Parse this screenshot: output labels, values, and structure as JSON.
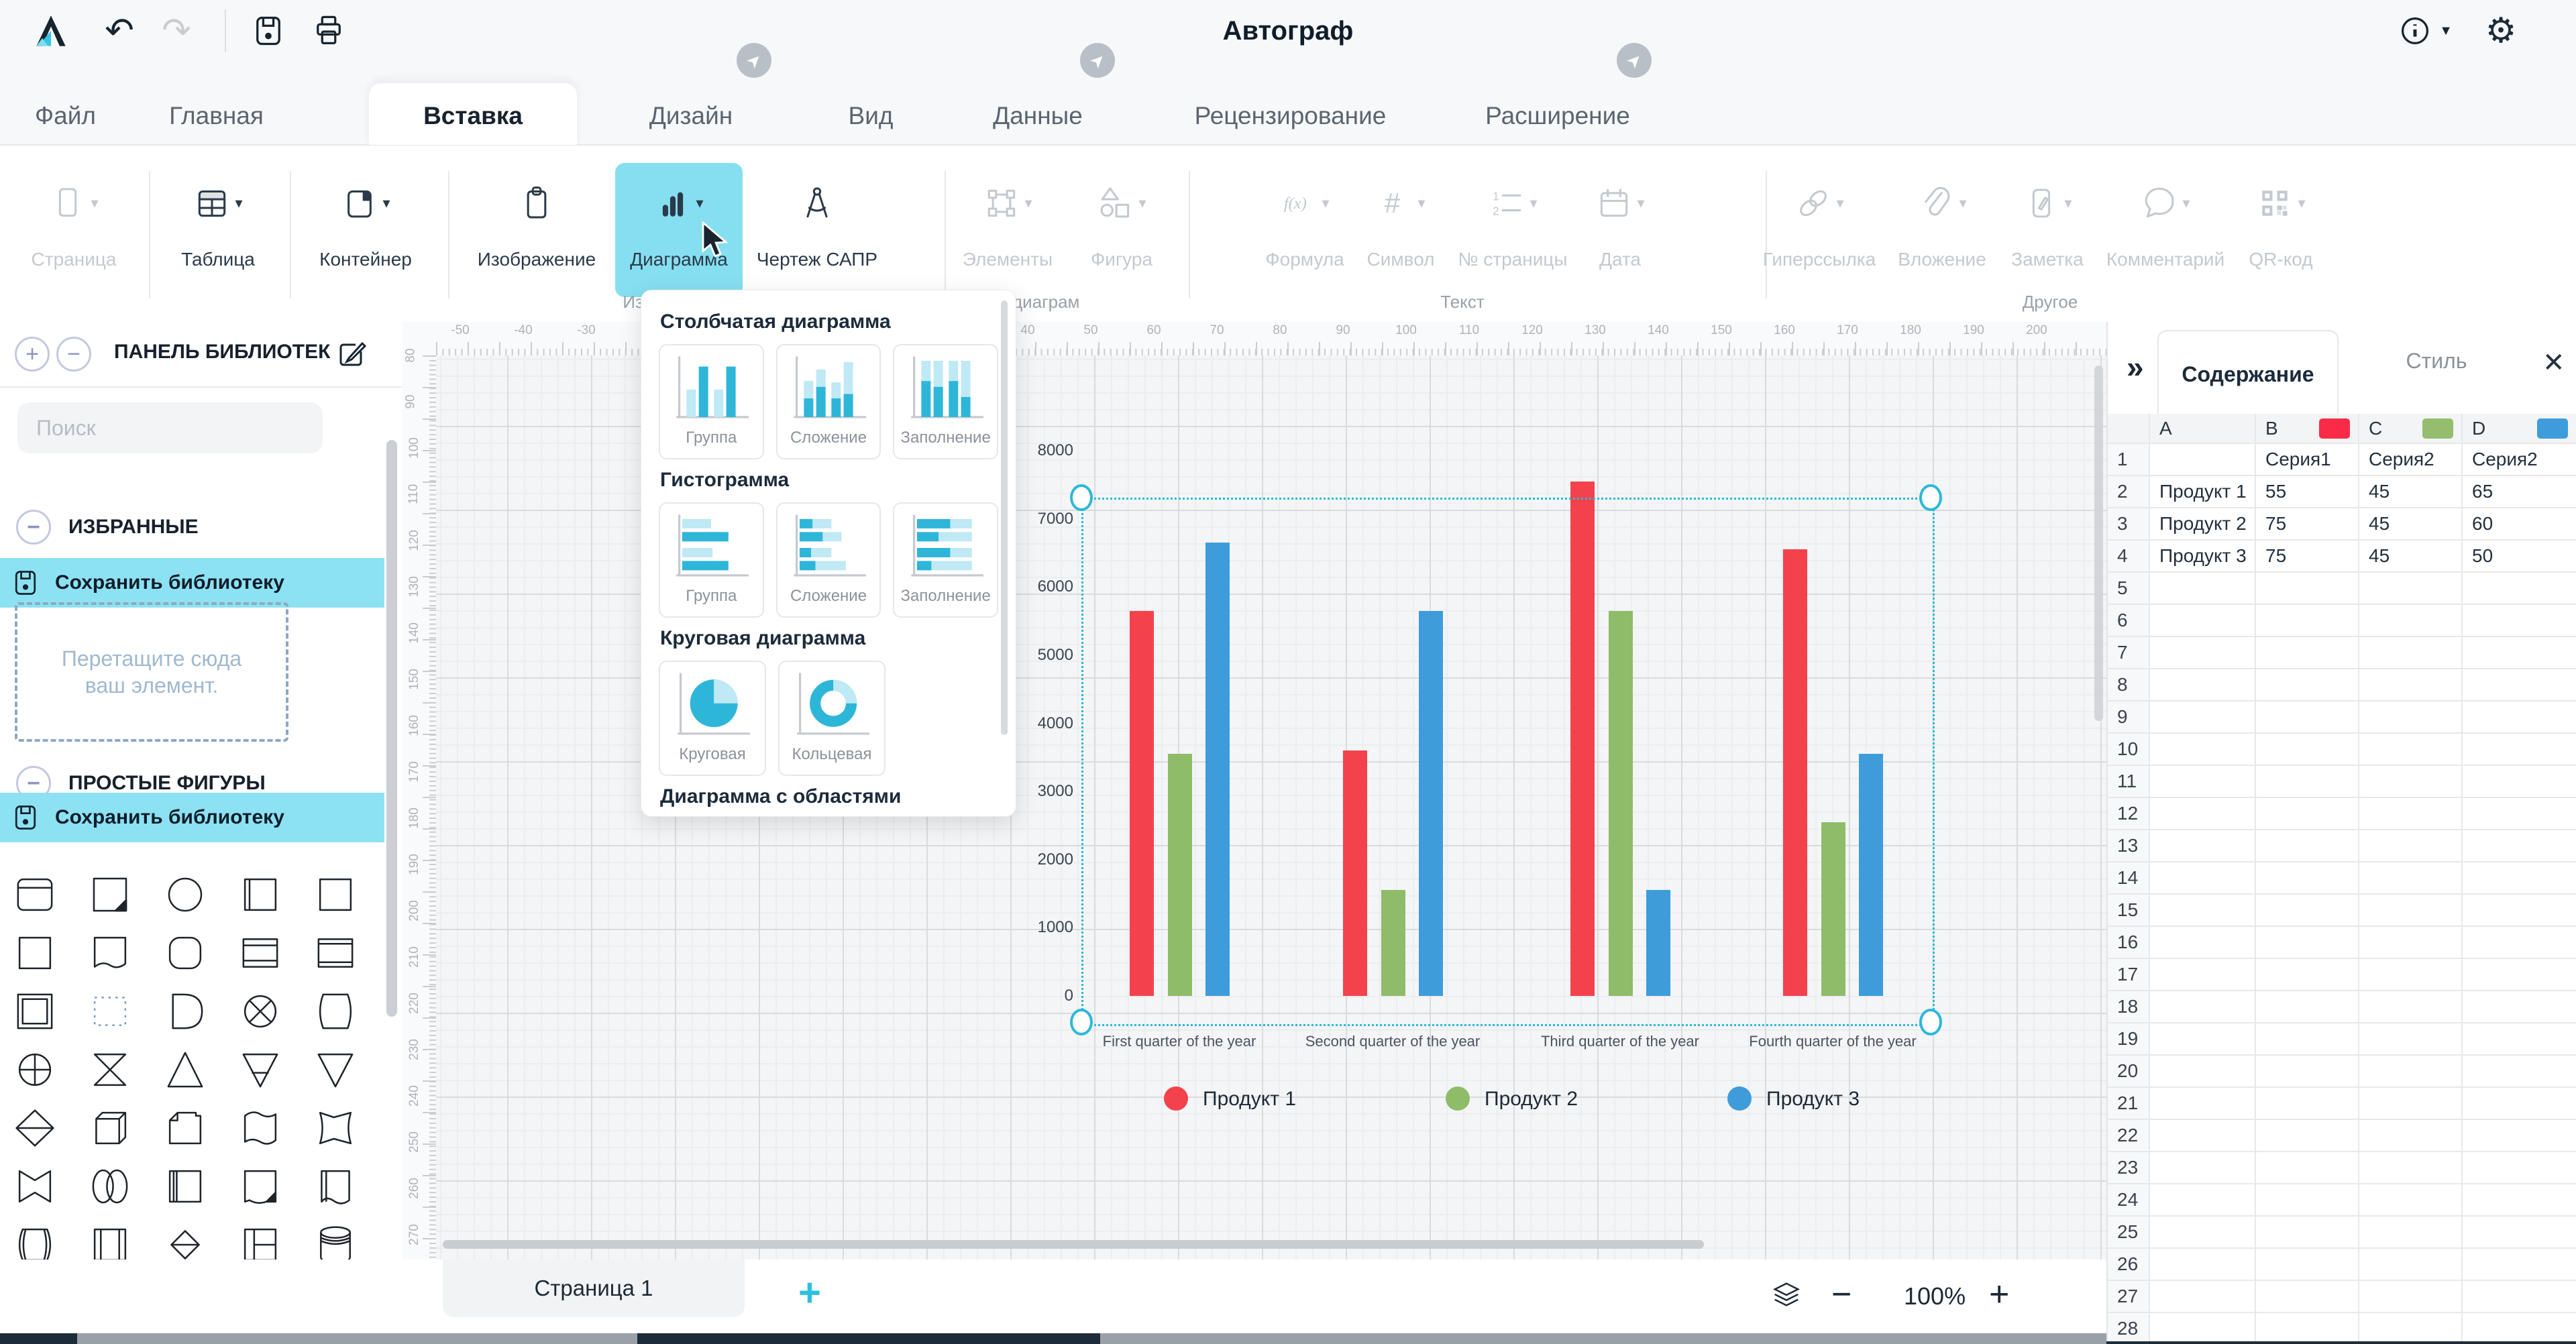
{
  "topbar": {
    "title": "Автограф"
  },
  "tabs": [
    {
      "label": "Файл"
    },
    {
      "label": "Главная"
    },
    {
      "label": "Вставка",
      "active": true
    },
    {
      "label": "Дизайн",
      "badge": true
    },
    {
      "label": "Вид"
    },
    {
      "label": "Данные",
      "badge": true
    },
    {
      "label": "Рецензирование"
    },
    {
      "label": "Расширение",
      "badge": true
    }
  ],
  "ribbon": {
    "groups": [
      {
        "caption": "",
        "items": [
          {
            "label": "Страница",
            "icon": "page",
            "caret": true,
            "disabled": true
          }
        ]
      },
      {
        "caption": "",
        "items": [
          {
            "label": "Таблица",
            "icon": "table",
            "caret": true
          }
        ]
      },
      {
        "caption": "",
        "items": [
          {
            "label": "Контейнер",
            "icon": "container",
            "caret": true
          }
        ]
      },
      {
        "caption": "Изображения",
        "items": [
          {
            "label": "Изображение",
            "icon": "clipboard"
          },
          {
            "label": "Диаграмма",
            "icon": "chart",
            "caret": true,
            "active": true
          },
          {
            "label": "Чертеж САПР",
            "icon": "compass"
          }
        ]
      },
      {
        "caption": "Части диаграм",
        "items": [
          {
            "label": "Элементы",
            "icon": "elements",
            "caret": true,
            "disabled": true
          },
          {
            "label": "Фигура",
            "icon": "shapes",
            "caret": true,
            "disabled": true
          }
        ]
      },
      {
        "caption": "Текст",
        "items": [
          {
            "label": "Формула",
            "icon": "formula",
            "caret": true,
            "disabled": true
          },
          {
            "label": "Символ",
            "icon": "hash",
            "caret": true,
            "disabled": true
          },
          {
            "label": "№ страницы",
            "icon": "numlist",
            "caret": true,
            "disabled": true
          },
          {
            "label": "Дата",
            "icon": "calendar",
            "caret": true,
            "disabled": true
          }
        ]
      },
      {
        "caption": "Другое",
        "items": [
          {
            "label": "Гиперссылка",
            "icon": "link",
            "caret": true,
            "disabled": true
          },
          {
            "label": "Вложение",
            "icon": "paperclip",
            "caret": true,
            "disabled": true
          },
          {
            "label": "Заметка",
            "icon": "note",
            "caret": true,
            "disabled": true
          },
          {
            "label": "Комментарий",
            "icon": "comment",
            "caret": true,
            "disabled": true
          },
          {
            "label": "QR-код",
            "icon": "qr",
            "caret": true,
            "disabled": true
          }
        ]
      }
    ]
  },
  "chart_menu": {
    "sections": [
      {
        "title": "Столбчатая диаграмма",
        "items": [
          {
            "label": "Группа",
            "kind": "col-group"
          },
          {
            "label": "Сложение",
            "kind": "col-stack"
          },
          {
            "label": "Заполнение",
            "kind": "col-fill"
          }
        ]
      },
      {
        "title": "Гистограмма",
        "items": [
          {
            "label": "Группа",
            "kind": "bar-group"
          },
          {
            "label": "Сложение",
            "kind": "bar-stack"
          },
          {
            "label": "Заполнение",
            "kind": "bar-fill"
          }
        ]
      },
      {
        "title": "Круговая диаграмма",
        "items": [
          {
            "label": "Круговая",
            "kind": "pie"
          },
          {
            "label": "Кольцевая",
            "kind": "donut"
          }
        ]
      },
      {
        "title": "Диаграмма с областями",
        "items": [
          {
            "label": "",
            "kind": "area"
          },
          {
            "label": "",
            "kind": "area"
          }
        ]
      }
    ]
  },
  "sidebar": {
    "panel_title": "ПАНЕЛЬ БИБЛИОТЕК",
    "search_placeholder": "Поиск",
    "favorites_title": "ИЗБРАННЫЕ",
    "save_label": "Сохранить библиотеку",
    "dropzone_text": "Перетащите сюда ваш элемент.",
    "shapes_title": "ПРОСТЫЕ ФИГУРЫ",
    "shapes": [
      "note",
      "folded",
      "circle",
      "leftbar",
      "square",
      "square",
      "wavebottom",
      "roundsq",
      "hlines",
      "hlines2",
      "doublerect",
      "dottedrect",
      "dshape",
      "circlex",
      "barrel",
      "circlecross",
      "hourglass",
      "triangle",
      "tridownline",
      "tridown",
      "diamondline",
      "box3d",
      "flagcorner",
      "waveflag",
      "arrowflag",
      "bowtie",
      "lobes",
      "leftbar2",
      "folddark",
      "sidewave",
      "roundsides",
      "vlines",
      "smalldiamond",
      "trect",
      "cylinder",
      "slant",
      "slant",
      "slant",
      "slant",
      "peak"
    ]
  },
  "canvas": {
    "h_ruler": {
      "start": -50,
      "end": 200,
      "step": 10
    },
    "v_ruler": {
      "start": 80,
      "end": 270,
      "step": 10
    }
  },
  "chart_data": {
    "type": "bar",
    "title": "",
    "categories": [
      "First quarter of the year",
      "Second quarter of the year",
      "Third quarter of the year",
      "Fourth quarter of the year"
    ],
    "series": [
      {
        "name": "Продукт 1",
        "color": "#f4424d",
        "values": [
          5650,
          3600,
          7550,
          6550
        ]
      },
      {
        "name": "Продукт 2",
        "color": "#8fbc68",
        "values": [
          3550,
          1550,
          5650,
          2550
        ]
      },
      {
        "name": "Продукт 3",
        "color": "#3e9cdb",
        "values": [
          6650,
          5650,
          1550,
          3550
        ]
      }
    ],
    "xlabel": "",
    "ylabel": "",
    "ylim": [
      0,
      8000
    ],
    "ytick_step": 1000,
    "grid": true,
    "legend_position": "bottom"
  },
  "right_panel": {
    "tab_content": "Содержание",
    "tab_style": "Стиль",
    "columns": [
      {
        "letter": "A",
        "color": null
      },
      {
        "letter": "B",
        "color": "#fa2b47"
      },
      {
        "letter": "C",
        "color": "#94be6e"
      },
      {
        "letter": "D",
        "color": "#3e9cdb"
      }
    ],
    "data_rows": [
      {
        "n": 1,
        "cells": [
          "",
          "Серия1",
          "Серия2",
          "Серия2"
        ]
      },
      {
        "n": 2,
        "cells": [
          "Продукт 1",
          "55",
          "45",
          "65"
        ]
      },
      {
        "n": 3,
        "cells": [
          "Продукт 2",
          "75",
          "45",
          "60"
        ]
      },
      {
        "n": 4,
        "cells": [
          "Продукт 3",
          "75",
          "45",
          "50"
        ]
      }
    ],
    "row_count": 28
  },
  "bottombar": {
    "page_tab": "Страница 1",
    "zoom": "100%"
  }
}
